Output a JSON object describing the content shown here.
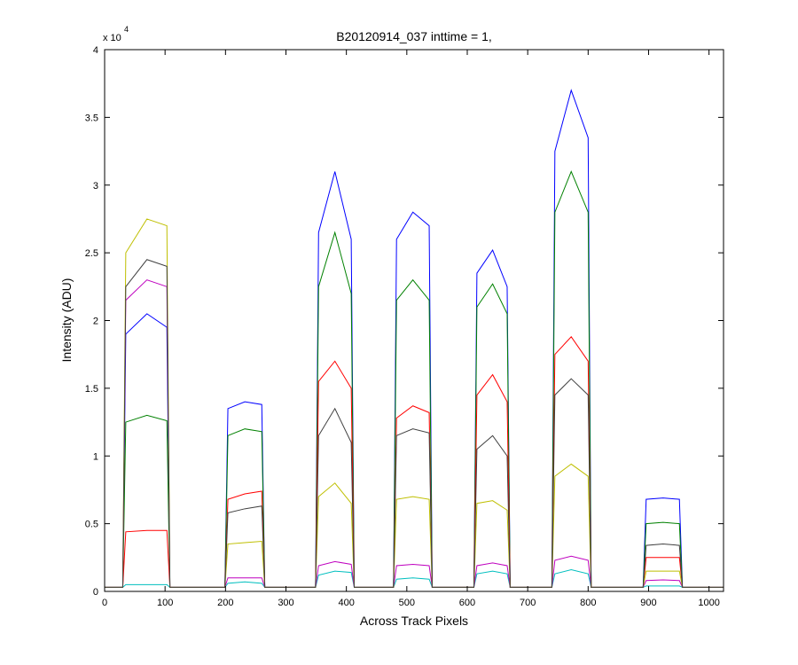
{
  "chart_data": {
    "type": "line",
    "title": "B20120914_037 inttime = 1,",
    "x_label": "Across Track Pixels",
    "y_label": "Intensity (ADU)",
    "y_multiplier": "x 10",
    "y_multiplier_exponent": "4",
    "xlim": [
      0,
      1024
    ],
    "ylim": [
      0,
      40000
    ],
    "xticks": [
      0,
      100,
      200,
      300,
      400,
      500,
      600,
      700,
      800,
      900,
      1000
    ],
    "yticks": [
      0,
      {
        "value": 5000,
        "label": "0.5"
      },
      {
        "value": 10000,
        "label": "1"
      },
      {
        "value": 15000,
        "label": "1.5"
      },
      {
        "value": 20000,
        "label": "2"
      },
      {
        "value": 25000,
        "label": "2.5"
      },
      {
        "value": 30000,
        "label": "3"
      },
      {
        "value": 35000,
        "label": "3.5"
      },
      {
        "value": 40000,
        "label": "4"
      }
    ],
    "grid": false,
    "x": [
      0,
      30,
      35,
      70,
      103,
      108,
      199,
      204,
      232,
      260,
      265,
      349,
      354,
      381,
      408,
      413,
      478,
      483,
      510,
      537,
      542,
      611,
      616,
      642,
      666,
      671,
      740,
      745,
      772,
      800,
      805,
      891,
      896,
      924,
      951,
      956,
      1024
    ],
    "series": [
      {
        "color": "#0000ff",
        "values": [
          300,
          300,
          19000,
          20500,
          19500,
          300,
          300,
          13500,
          14000,
          13800,
          300,
          300,
          26500,
          31000,
          26000,
          300,
          300,
          26000,
          28000,
          27000,
          300,
          300,
          23500,
          25200,
          22500,
          300,
          300,
          32500,
          37000,
          33500,
          300,
          300,
          6800,
          6900,
          6800,
          300,
          300
        ]
      },
      {
        "color": "#008000",
        "values": [
          300,
          300,
          12500,
          13000,
          12600,
          300,
          300,
          11500,
          12000,
          11800,
          300,
          300,
          22500,
          26500,
          22000,
          300,
          300,
          21500,
          23000,
          21500,
          300,
          300,
          21000,
          22700,
          20500,
          300,
          300,
          28000,
          31000,
          28000,
          300,
          300,
          5000,
          5100,
          5000,
          300,
          300
        ]
      },
      {
        "color": "#ff0000",
        "values": [
          300,
          300,
          4400,
          4500,
          4500,
          300,
          300,
          6800,
          7200,
          7400,
          300,
          300,
          15500,
          17000,
          15000,
          300,
          300,
          12800,
          13700,
          13200,
          300,
          300,
          14500,
          16000,
          14000,
          300,
          300,
          17500,
          18800,
          17000,
          300,
          300,
          2500,
          2500,
          2500,
          300,
          300
        ]
      },
      {
        "color": "#00bfbf",
        "values": [
          300,
          300,
          500,
          500,
          500,
          300,
          300,
          600,
          700,
          600,
          300,
          300,
          1200,
          1500,
          1400,
          300,
          300,
          900,
          1000,
          900,
          300,
          300,
          1300,
          1500,
          1300,
          300,
          300,
          1300,
          1600,
          1300,
          300,
          300,
          400,
          400,
          400,
          300,
          300
        ]
      },
      {
        "color": "#bf00bf",
        "values": [
          300,
          300,
          21500,
          23000,
          22500,
          300,
          300,
          1000,
          1000,
          1000,
          300,
          300,
          1900,
          2200,
          2000,
          300,
          300,
          1900,
          2000,
          1900,
          300,
          300,
          1900,
          2100,
          1900,
          300,
          300,
          2300,
          2600,
          2300,
          300,
          300,
          800,
          850,
          800,
          300,
          300
        ]
      },
      {
        "color": "#bfbf00",
        "values": [
          300,
          300,
          25000,
          27500,
          27000,
          300,
          300,
          3500,
          3600,
          3700,
          300,
          300,
          7000,
          8000,
          6500,
          300,
          300,
          6800,
          7000,
          6800,
          300,
          300,
          6500,
          6700,
          6000,
          300,
          300,
          8500,
          9400,
          8500,
          300,
          300,
          1500,
          1500,
          1500,
          300,
          300
        ]
      },
      {
        "color": "#404040",
        "values": [
          300,
          300,
          22500,
          24500,
          24000,
          300,
          300,
          5800,
          6100,
          6300,
          300,
          300,
          11500,
          13500,
          11000,
          300,
          300,
          11500,
          12000,
          11700,
          300,
          300,
          10500,
          11500,
          10000,
          300,
          300,
          14500,
          15700,
          14500,
          300,
          300,
          3400,
          3500,
          3400,
          300,
          300
        ]
      }
    ]
  }
}
